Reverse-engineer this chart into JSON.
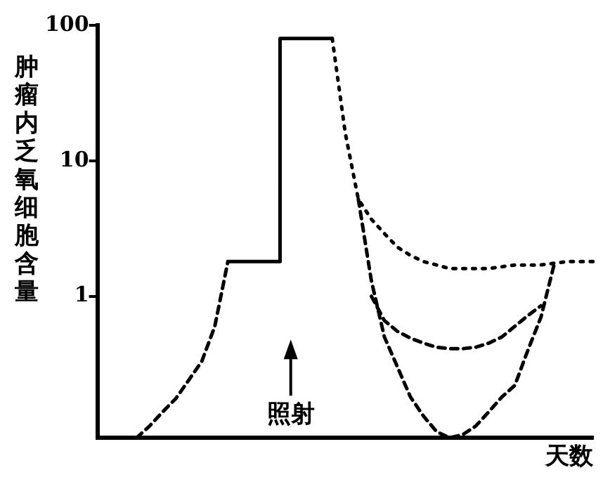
{
  "chart_data": {
    "type": "line",
    "ylabel": "肿瘤内乏氧细胞含量",
    "xlabel": "天数",
    "log": "y",
    "grid": false,
    "legend": false,
    "tick_labels": "y",
    "marker": "none",
    "categories": [
      null,
      null,
      null,
      null,
      null,
      null,
      null,
      null,
      null,
      null,
      null,
      null,
      null,
      null,
      null,
      null,
      null,
      null,
      null,
      null,
      null,
      null,
      null,
      null,
      null,
      null,
      null,
      null,
      null,
      null,
      null,
      null,
      null,
      null,
      null,
      null,
      null,
      null,
      null
    ],
    "ylim": [
      0.09,
      100
    ],
    "yticks": [
      1,
      10,
      100
    ],
    "annotations": [
      "照射"
    ],
    "series": [
      {
        "color": "#000000",
        "line_style": "dashed",
        "values": [
          null,
          null,
          null,
          0.09,
          0.11,
          0.14,
          0.175,
          0.24,
          0.33,
          0.6,
          1.8,
          null,
          null,
          null,
          null,
          null,
          null,
          null,
          null,
          null,
          null,
          null,
          null,
          null,
          null,
          null,
          null,
          null,
          null,
          null,
          null,
          null,
          null,
          null,
          null,
          null,
          null,
          null,
          null
        ]
      },
      {
        "type": "step",
        "color": "#000000",
        "line_style": "solid",
        "values": [
          null,
          null,
          null,
          null,
          null,
          null,
          null,
          null,
          null,
          null,
          1.8,
          1.8,
          1.8,
          1.8,
          1.8,
          80,
          80,
          80,
          80,
          null,
          null,
          null,
          null,
          null,
          null,
          null,
          null,
          null,
          null,
          null,
          null,
          null,
          null,
          null,
          null,
          null,
          null,
          null,
          null
        ]
      },
      {
        "color": "#000000",
        "line_style": "dotted",
        "values": [
          null,
          null,
          null,
          null,
          null,
          null,
          null,
          null,
          null,
          null,
          null,
          null,
          null,
          null,
          null,
          null,
          null,
          null,
          80,
          16,
          5.2,
          3.7,
          2.9,
          2.3,
          2.0,
          1.8,
          1.7,
          1.6,
          1.6,
          1.6,
          1.6,
          1.65,
          1.7,
          1.7,
          1.7,
          1.75,
          1.8,
          1.8,
          1.8
        ]
      },
      {
        "color": "#000000",
        "line_style": "dashed",
        "values": [
          null,
          null,
          null,
          null,
          null,
          null,
          null,
          null,
          null,
          null,
          null,
          null,
          null,
          null,
          null,
          null,
          null,
          null,
          null,
          null,
          null,
          1.0,
          0.66,
          0.55,
          0.49,
          0.45,
          0.42,
          0.41,
          0.41,
          0.42,
          0.45,
          0.5,
          0.6,
          0.72,
          0.85,
          null,
          null,
          null,
          null
        ]
      },
      {
        "color": "#000000",
        "line_style": "dashed",
        "values": [
          null,
          null,
          null,
          null,
          null,
          null,
          null,
          null,
          null,
          null,
          null,
          null,
          null,
          null,
          null,
          null,
          null,
          null,
          null,
          null,
          5.2,
          1.3,
          0.5,
          0.3,
          0.18,
          0.13,
          0.1,
          0.09,
          0.095,
          0.11,
          0.14,
          0.18,
          0.22,
          0.4,
          0.7,
          1.7,
          null,
          null,
          null
        ]
      }
    ]
  }
}
